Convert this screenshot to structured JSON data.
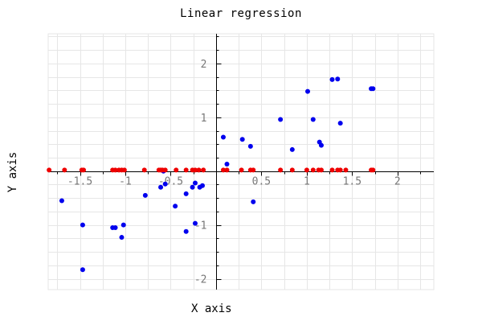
{
  "chart_data": {
    "type": "scatter",
    "title": "Linear regression",
    "xlabel": "X axis",
    "ylabel": "Y axis",
    "xlim": [
      -1.85,
      2.4
    ],
    "ylim": [
      -2.2,
      2.55
    ],
    "x_ticks": [
      {
        "value": -1.5,
        "label": "-1.5"
      },
      {
        "value": -1,
        "label": "-1"
      },
      {
        "value": -0.5,
        "label": "-0.5"
      },
      {
        "value": 0.5,
        "label": "0.5"
      },
      {
        "value": 1,
        "label": "1"
      },
      {
        "value": 1.5,
        "label": "1.5"
      },
      {
        "value": 2,
        "label": "2"
      }
    ],
    "y_ticks": [
      {
        "value": 2,
        "label": "2"
      },
      {
        "value": 1,
        "label": "1"
      },
      {
        "value": -1,
        "label": "-1"
      },
      {
        "value": -2,
        "label": "-2"
      }
    ],
    "grid": true,
    "colors": {
      "blue": "#0000ee",
      "red": "#ee0000",
      "grid": "#e6e6e6",
      "axis": "#000000",
      "tick_label": "#777777"
    },
    "series": [
      {
        "color": "blue",
        "points": [
          [
            -1.7,
            -0.55
          ],
          [
            -1.47,
            -1.0
          ],
          [
            -1.47,
            -1.83
          ],
          [
            -1.14,
            -1.05
          ],
          [
            -1.11,
            -1.05
          ],
          [
            -1.04,
            -1.23
          ],
          [
            -1.02,
            -1.0
          ],
          [
            -0.78,
            -0.45
          ],
          [
            -0.61,
            -0.3
          ],
          [
            -0.58,
            0.0
          ],
          [
            -0.56,
            -0.24
          ],
          [
            -0.45,
            -0.65
          ],
          [
            -0.33,
            -0.42
          ],
          [
            -0.33,
            -1.12
          ],
          [
            -0.26,
            -0.3
          ],
          [
            -0.23,
            -0.22
          ],
          [
            -0.23,
            -0.97
          ],
          [
            -0.18,
            -0.3
          ],
          [
            -0.15,
            -0.27
          ],
          [
            0.08,
            0.63
          ],
          [
            0.12,
            0.13
          ],
          [
            0.29,
            0.59
          ],
          [
            0.38,
            0.46
          ],
          [
            0.41,
            -0.57
          ],
          [
            0.71,
            0.96
          ],
          [
            0.84,
            0.4
          ],
          [
            1.01,
            1.48
          ],
          [
            1.07,
            0.96
          ],
          [
            1.14,
            0.54
          ],
          [
            1.16,
            0.48
          ],
          [
            1.28,
            1.7
          ],
          [
            1.34,
            1.71
          ],
          [
            1.37,
            0.89
          ],
          [
            1.71,
            1.53
          ],
          [
            1.73,
            1.53
          ]
        ]
      },
      {
        "color": "red",
        "points": [
          [
            -1.84,
            0.02
          ],
          [
            -1.67,
            0.02
          ],
          [
            -1.48,
            0.02
          ],
          [
            -1.46,
            0.02
          ],
          [
            -1.14,
            0.02
          ],
          [
            -1.11,
            0.02
          ],
          [
            -1.07,
            0.02
          ],
          [
            -1.04,
            0.02
          ],
          [
            -1.01,
            0.02
          ],
          [
            -0.79,
            0.02
          ],
          [
            -0.63,
            0.02
          ],
          [
            -0.61,
            0.02
          ],
          [
            -0.59,
            0.02
          ],
          [
            -0.56,
            0.02
          ],
          [
            -0.44,
            0.02
          ],
          [
            -0.33,
            0.02
          ],
          [
            -0.26,
            0.02
          ],
          [
            -0.23,
            0.02
          ],
          [
            -0.19,
            0.02
          ],
          [
            -0.14,
            0.02
          ],
          [
            0.08,
            0.02
          ],
          [
            0.12,
            0.02
          ],
          [
            0.28,
            0.02
          ],
          [
            0.38,
            0.02
          ],
          [
            0.41,
            0.02
          ],
          [
            0.71,
            0.02
          ],
          [
            0.84,
            0.02
          ],
          [
            1.0,
            0.02
          ],
          [
            1.07,
            0.02
          ],
          [
            1.13,
            0.02
          ],
          [
            1.16,
            0.02
          ],
          [
            1.28,
            0.02
          ],
          [
            1.34,
            0.02
          ],
          [
            1.37,
            0.02
          ],
          [
            1.43,
            0.02
          ],
          [
            1.71,
            0.02
          ],
          [
            1.73,
            0.02
          ]
        ]
      }
    ]
  }
}
